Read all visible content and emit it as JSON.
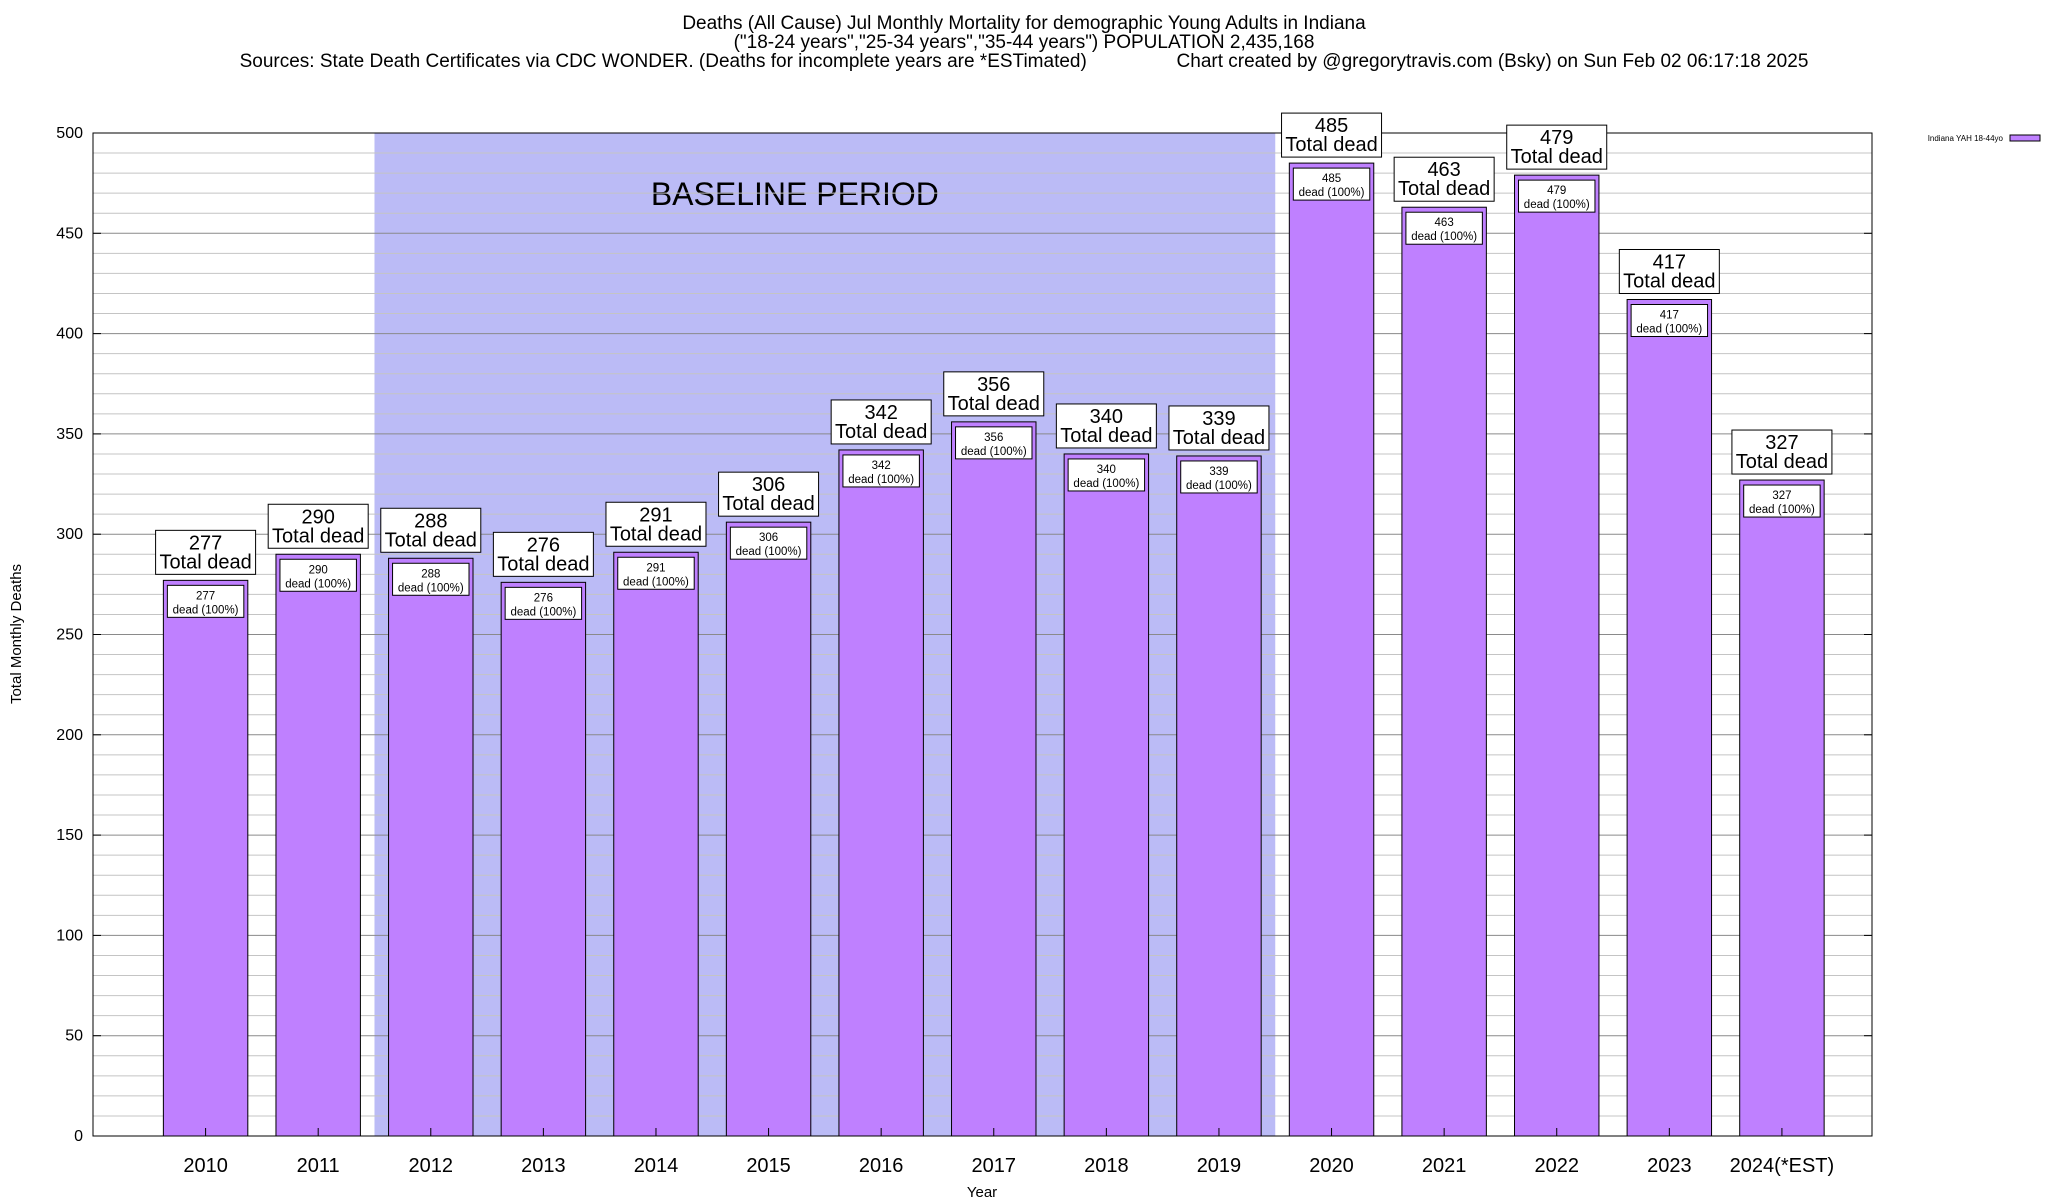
{
  "chart_data": {
    "type": "bar",
    "title_lines": [
      "Deaths (All Cause) Jul Monthly Mortality for demographic Young Adults in Indiana",
      "(\"18-24 years\",\"25-34 years\",\"35-44 years\") POPULATION 2,435,168",
      "Sources: State Death Certificates via CDC WONDER. (Deaths for incomplete years are *ESTimated)                 Chart created by @gregorytravis.com (Bsky) on Sun Feb 02 06:17:18 2025"
    ],
    "xlabel": "Year",
    "ylabel": "Total Monthly Deaths",
    "ylim": [
      0,
      500
    ],
    "yticks": [
      0,
      50,
      100,
      150,
      200,
      250,
      300,
      350,
      400,
      450,
      500
    ],
    "categories": [
      "2010",
      "2011",
      "2012",
      "2013",
      "2014",
      "2015",
      "2016",
      "2017",
      "2018",
      "2019",
      "2020",
      "2021",
      "2022",
      "2023",
      "2024(*EST)"
    ],
    "series": [
      {
        "name": "Indiana YAH 18-44yo",
        "color": "#bf80ff",
        "values": [
          277,
          290,
          288,
          276,
          291,
          306,
          342,
          356,
          340,
          339,
          485,
          463,
          479,
          417,
          327
        ]
      }
    ],
    "bar_label_top": "Total dead",
    "bar_label_inner": "dead (100%)",
    "baseline_period": {
      "label": "BASELINE PERIOD",
      "start": "2012",
      "end": "2019",
      "color": "#bbbbf6"
    },
    "grid": true,
    "legend_position": "top-right"
  }
}
